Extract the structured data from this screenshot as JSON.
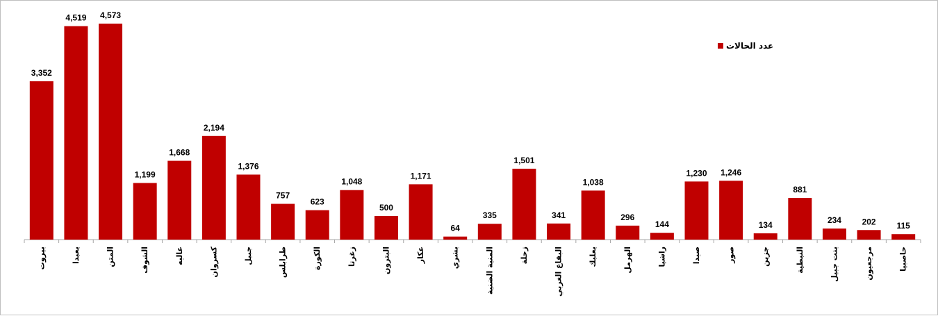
{
  "chart_data": {
    "type": "bar",
    "title": "",
    "xlabel": "",
    "ylabel": "",
    "ylim": [
      0,
      4700
    ],
    "grid": false,
    "legend_position": "top-right",
    "bar_color": "#c00000",
    "categories": [
      "بيروت",
      "بعبدا",
      "المتن",
      "الشوف",
      "عاليه",
      "كسروان",
      "جبيل",
      "طرابلس",
      "الكورة",
      "زغرتا",
      "البترون",
      "عكار",
      "بشري",
      "المنية الضنية",
      "زحلة",
      "البقاع الغربي",
      "بعلبك",
      "الهرمل",
      "راشيا",
      "صيدا",
      "صور",
      "جزين",
      "النبطية",
      "بنت جبيل",
      "مرجعيون",
      "حاصبيا"
    ],
    "series": [
      {
        "name": "عدد الحالات",
        "values": [
          3352,
          4519,
          4573,
          1199,
          1668,
          2194,
          1376,
          757,
          623,
          1048,
          500,
          1171,
          64,
          335,
          1501,
          341,
          1038,
          296,
          144,
          1230,
          1246,
          134,
          881,
          234,
          202,
          115
        ],
        "labels": [
          "3,352",
          "4,519",
          "4,573",
          "1,199",
          "1,668",
          "2,194",
          "1,376",
          "757",
          "623",
          "1,048",
          "500",
          "1,171",
          "64",
          "335",
          "1,501",
          "341",
          "1,038",
          "296",
          "144",
          "1,230",
          "1,246",
          "134",
          "881",
          "234",
          "202",
          "115"
        ]
      }
    ]
  }
}
